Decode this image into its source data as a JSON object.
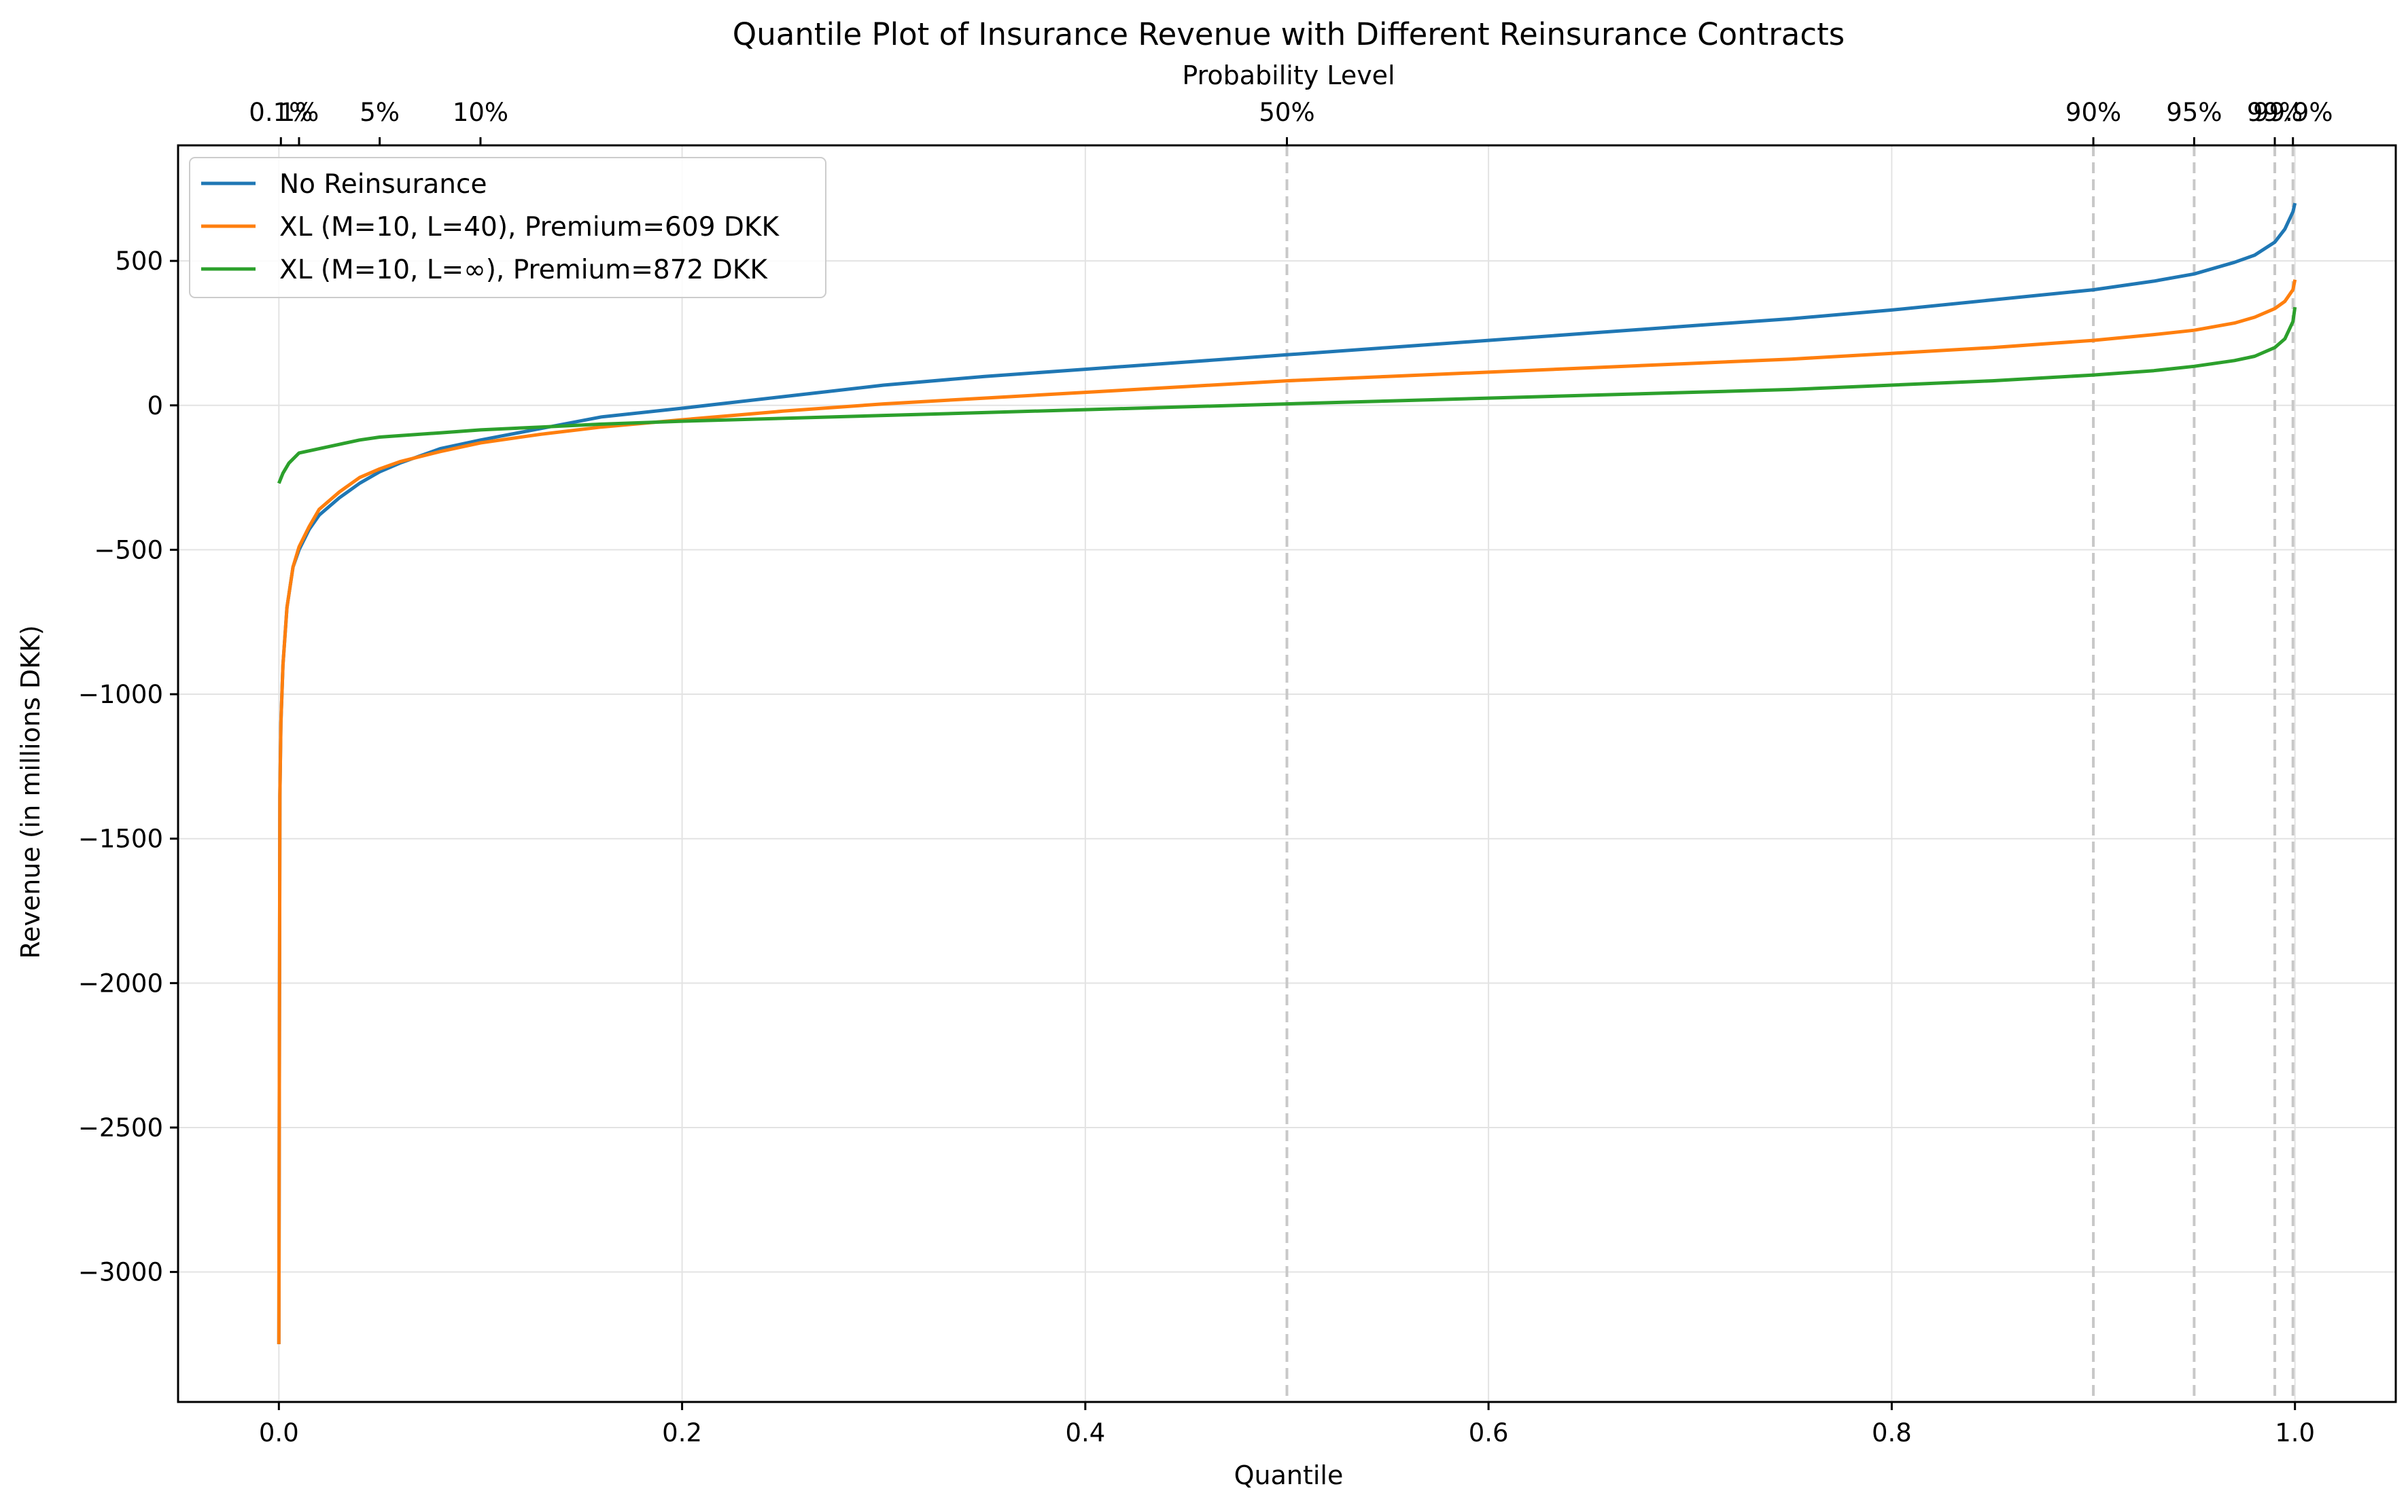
{
  "chart_data": {
    "type": "line",
    "title": "Quantile Plot of Insurance Revenue with Different Reinsurance Contracts",
    "xlabel": "Quantile",
    "ylabel": "Revenue (in millions DKK)",
    "top_axis_label": "Probability Level",
    "xlim": [
      -0.05,
      1.05
    ],
    "ylim": [
      -3450,
      900
    ],
    "x_ticks": [
      0.0,
      0.2,
      0.4,
      0.6,
      0.8,
      1.0
    ],
    "x_tick_labels": [
      "0.0",
      "0.2",
      "0.4",
      "0.6",
      "0.8",
      "1.0"
    ],
    "y_ticks": [
      -3000,
      -2500,
      -2000,
      -1500,
      -1000,
      -500,
      0,
      500
    ],
    "y_tick_labels": [
      "−3000",
      "−2500",
      "−2000",
      "−1500",
      "−1000",
      "−500",
      "0",
      "500"
    ],
    "grid": true,
    "legend_position": "top-left",
    "probability_levels": [
      {
        "q": 0.001,
        "label": "0.1%",
        "dashed": false
      },
      {
        "q": 0.01,
        "label": "1%",
        "dashed": false
      },
      {
        "q": 0.05,
        "label": "5%",
        "dashed": false
      },
      {
        "q": 0.1,
        "label": "10%",
        "dashed": false
      },
      {
        "q": 0.5,
        "label": "50%",
        "dashed": true
      },
      {
        "q": 0.9,
        "label": "90%",
        "dashed": true
      },
      {
        "q": 0.95,
        "label": "95%",
        "dashed": true
      },
      {
        "q": 0.99,
        "label": "99%",
        "dashed": true
      },
      {
        "q": 0.999,
        "label": "99.9%",
        "dashed": true
      }
    ],
    "series": [
      {
        "name": "No Reinsurance",
        "color": "#1f77b4",
        "points": [
          [
            0.0,
            -3250
          ],
          [
            0.0005,
            -1350
          ],
          [
            0.001,
            -1100
          ],
          [
            0.002,
            -900
          ],
          [
            0.004,
            -700
          ],
          [
            0.007,
            -560
          ],
          [
            0.01,
            -500
          ],
          [
            0.015,
            -430
          ],
          [
            0.02,
            -380
          ],
          [
            0.03,
            -320
          ],
          [
            0.04,
            -270
          ],
          [
            0.05,
            -230
          ],
          [
            0.06,
            -200
          ],
          [
            0.08,
            -150
          ],
          [
            0.1,
            -120
          ],
          [
            0.13,
            -80
          ],
          [
            0.16,
            -40
          ],
          [
            0.2,
            -10
          ],
          [
            0.25,
            30
          ],
          [
            0.3,
            70
          ],
          [
            0.35,
            100
          ],
          [
            0.4,
            125
          ],
          [
            0.45,
            150
          ],
          [
            0.5,
            175
          ],
          [
            0.55,
            200
          ],
          [
            0.6,
            225
          ],
          [
            0.65,
            250
          ],
          [
            0.7,
            275
          ],
          [
            0.75,
            300
          ],
          [
            0.8,
            330
          ],
          [
            0.85,
            365
          ],
          [
            0.9,
            400
          ],
          [
            0.93,
            430
          ],
          [
            0.95,
            455
          ],
          [
            0.97,
            495
          ],
          [
            0.98,
            520
          ],
          [
            0.99,
            565
          ],
          [
            0.995,
            610
          ],
          [
            0.999,
            670
          ],
          [
            1.0,
            700
          ]
        ]
      },
      {
        "name": "XL (M=10, L=40), Premium=609 DKK",
        "color": "#ff7f0e",
        "points": [
          [
            0.0,
            -3250
          ],
          [
            0.0005,
            -1350
          ],
          [
            0.001,
            -1100
          ],
          [
            0.002,
            -900
          ],
          [
            0.004,
            -700
          ],
          [
            0.007,
            -560
          ],
          [
            0.01,
            -490
          ],
          [
            0.015,
            -420
          ],
          [
            0.02,
            -360
          ],
          [
            0.03,
            -300
          ],
          [
            0.04,
            -250
          ],
          [
            0.05,
            -220
          ],
          [
            0.06,
            -195
          ],
          [
            0.08,
            -160
          ],
          [
            0.1,
            -130
          ],
          [
            0.13,
            -100
          ],
          [
            0.16,
            -75
          ],
          [
            0.2,
            -50
          ],
          [
            0.25,
            -20
          ],
          [
            0.3,
            5
          ],
          [
            0.35,
            25
          ],
          [
            0.4,
            45
          ],
          [
            0.45,
            65
          ],
          [
            0.5,
            85
          ],
          [
            0.55,
            100
          ],
          [
            0.6,
            115
          ],
          [
            0.65,
            130
          ],
          [
            0.7,
            145
          ],
          [
            0.75,
            160
          ],
          [
            0.8,
            180
          ],
          [
            0.85,
            200
          ],
          [
            0.9,
            225
          ],
          [
            0.93,
            245
          ],
          [
            0.95,
            260
          ],
          [
            0.97,
            285
          ],
          [
            0.98,
            305
          ],
          [
            0.99,
            335
          ],
          [
            0.995,
            360
          ],
          [
            0.999,
            400
          ],
          [
            1.0,
            435
          ]
        ]
      },
      {
        "name": "XL (M=10, L=∞), Premium=872 DKK",
        "color": "#2ca02c",
        "points": [
          [
            0.0,
            -270
          ],
          [
            0.002,
            -235
          ],
          [
            0.005,
            -200
          ],
          [
            0.01,
            -165
          ],
          [
            0.02,
            -150
          ],
          [
            0.03,
            -135
          ],
          [
            0.04,
            -120
          ],
          [
            0.05,
            -110
          ],
          [
            0.06,
            -105
          ],
          [
            0.08,
            -95
          ],
          [
            0.1,
            -85
          ],
          [
            0.13,
            -75
          ],
          [
            0.16,
            -65
          ],
          [
            0.2,
            -55
          ],
          [
            0.25,
            -45
          ],
          [
            0.3,
            -35
          ],
          [
            0.35,
            -25
          ],
          [
            0.4,
            -15
          ],
          [
            0.45,
            -5
          ],
          [
            0.5,
            5
          ],
          [
            0.55,
            15
          ],
          [
            0.6,
            25
          ],
          [
            0.65,
            35
          ],
          [
            0.7,
            45
          ],
          [
            0.75,
            55
          ],
          [
            0.8,
            70
          ],
          [
            0.85,
            85
          ],
          [
            0.9,
            105
          ],
          [
            0.93,
            120
          ],
          [
            0.95,
            135
          ],
          [
            0.97,
            155
          ],
          [
            0.98,
            170
          ],
          [
            0.99,
            200
          ],
          [
            0.995,
            230
          ],
          [
            0.999,
            290
          ],
          [
            1.0,
            340
          ]
        ]
      }
    ]
  }
}
